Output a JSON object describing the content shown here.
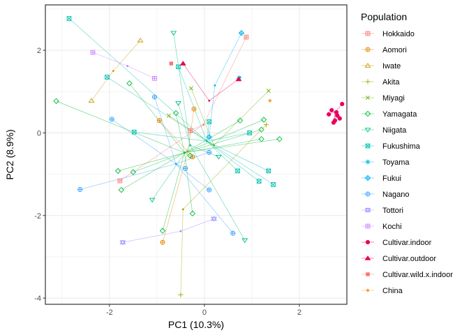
{
  "chart_data": {
    "type": "scatter",
    "xlabel": "PC1 (10.3%)",
    "ylabel": "PC2 (8.9%)",
    "xlim": [
      -3.35,
      3.0
    ],
    "ylim": [
      -4.15,
      3.1
    ],
    "x_ticks": [
      -2,
      0,
      2
    ],
    "y_ticks": [
      -4,
      -2,
      0,
      2
    ],
    "grid": true,
    "legend": {
      "title": "Population",
      "position": "right"
    },
    "series": [
      {
        "name": "Hokkaido",
        "color": "#F8766D",
        "shape": "square-plus",
        "centroid": [
          -0.02,
          0.2
        ],
        "points": [
          [
            0.88,
            2.32
          ],
          [
            -1.78,
            -1.16
          ],
          [
            -0.3,
            0.06
          ]
        ]
      },
      {
        "name": "Aomori",
        "color": "#E58700",
        "shape": "circle-plus",
        "centroid": [
          -0.35,
          -0.45
        ],
        "points": [
          [
            -0.95,
            0.3
          ],
          [
            -0.25,
            -0.58
          ],
          [
            -0.88,
            -2.65
          ],
          [
            -0.22,
            0.58
          ]
        ]
      },
      {
        "name": "Iwate",
        "color": "#C99800",
        "shape": "triangle",
        "centroid": [
          -1.92,
          1.5
        ],
        "points": [
          [
            -1.35,
            2.24
          ],
          [
            -2.38,
            0.78
          ]
        ]
      },
      {
        "name": "Akita",
        "color": "#A3A500",
        "shape": "plus",
        "centroid": [
          -0.45,
          -1.85
        ],
        "points": [
          [
            -0.5,
            -3.92
          ],
          [
            1.3,
            0.2
          ]
        ]
      },
      {
        "name": "Miyagi",
        "color": "#6BB100",
        "shape": "x",
        "centroid": [
          0.2,
          -0.3
        ],
        "points": [
          [
            1.35,
            1.02
          ],
          [
            -0.28,
            1.08
          ],
          [
            -0.75,
            0.42
          ]
        ]
      },
      {
        "name": "Yamagata",
        "color": "#00BA38",
        "shape": "diamond",
        "centroid": [
          -0.42,
          -0.48
        ],
        "points": [
          [
            -3.12,
            0.77
          ],
          [
            -1.58,
            1.2
          ],
          [
            -1.75,
            -1.38
          ],
          [
            -1.82,
            -0.92
          ],
          [
            -1.5,
            -0.95
          ],
          [
            -0.88,
            -2.37
          ],
          [
            -0.6,
            0.48
          ],
          [
            -0.3,
            -0.55
          ],
          [
            -0.25,
            -1.95
          ],
          [
            0.75,
            0.3
          ],
          [
            1.2,
            0.08
          ],
          [
            1.2,
            -0.15
          ],
          [
            1.25,
            0.32
          ],
          [
            1.58,
            -0.15
          ]
        ]
      },
      {
        "name": "Niigata",
        "color": "#00BF7D",
        "shape": "triangle-down",
        "centroid": [
          -0.3,
          -0.3
        ],
        "points": [
          [
            -0.65,
            2.42
          ],
          [
            -0.55,
            0.72
          ],
          [
            -1.1,
            -1.62
          ],
          [
            0.3,
            -0.58
          ],
          [
            0.85,
            -2.6
          ]
        ]
      },
      {
        "name": "Fukushima",
        "color": "#00C0AF",
        "shape": "square-x",
        "centroid": [
          0.05,
          -0.2
        ],
        "points": [
          [
            -2.85,
            2.77
          ],
          [
            -2.05,
            1.35
          ],
          [
            -0.55,
            1.6
          ],
          [
            -1.48,
            0.02
          ],
          [
            0.1,
            0.27
          ],
          [
            0.95,
            0.0
          ],
          [
            0.7,
            -0.92
          ],
          [
            1.15,
            -1.17
          ],
          [
            1.35,
            -0.92
          ],
          [
            1.45,
            -1.25
          ]
        ]
      },
      {
        "name": "Toyama",
        "color": "#00BCD8",
        "shape": "asterisk",
        "centroid": [
          0.75,
          1.35
        ],
        "points": [
          [
            0.73,
            1.33
          ]
        ]
      },
      {
        "name": "Fukui",
        "color": "#00B0F6",
        "shape": "diamond-plus",
        "centroid": [
          0.22,
          1.15
        ],
        "points": [
          [
            0.78,
            2.42
          ],
          [
            0.1,
            -0.1
          ]
        ]
      },
      {
        "name": "Nagano",
        "color": "#35A2FF",
        "shape": "circle-plus",
        "centroid": [
          -0.6,
          -0.75
        ],
        "points": [
          [
            -1.05,
            0.87
          ],
          [
            -1.95,
            0.33
          ],
          [
            -2.62,
            -1.37
          ],
          [
            -0.4,
            -0.86
          ],
          [
            0.1,
            -1.38
          ],
          [
            0.1,
            -0.47
          ],
          [
            0.6,
            -2.43
          ]
        ]
      },
      {
        "name": "Tottori",
        "color": "#9590FF",
        "shape": "star",
        "centroid": [
          -0.5,
          -2.38
        ],
        "points": [
          [
            -1.72,
            -2.65
          ],
          [
            0.2,
            -2.08
          ]
        ]
      },
      {
        "name": "Kochi",
        "color": "#C77CFF",
        "shape": "square-plus",
        "centroid": [
          -1.62,
          1.62
        ],
        "points": [
          [
            -2.35,
            1.95
          ],
          [
            -1.05,
            1.32
          ]
        ]
      },
      {
        "name": "Cultivar.indoor",
        "color": "#E7005F",
        "shape": "circle",
        "centroid": [
          2.75,
          0.5
        ],
        "points": [
          [
            2.62,
            0.45
          ],
          [
            2.68,
            0.55
          ],
          [
            2.78,
            0.5
          ],
          [
            2.85,
            0.35
          ],
          [
            2.9,
            0.7
          ],
          [
            2.75,
            0.3
          ],
          [
            2.8,
            0.42
          ],
          [
            2.72,
            0.25
          ]
        ]
      },
      {
        "name": "Cultivar.outdoor",
        "color": "#E7004C",
        "shape": "triangle-filled",
        "centroid": [
          0.1,
          0.78
        ],
        "points": [
          [
            -0.45,
            1.68
          ],
          [
            0.72,
            1.3
          ]
        ]
      },
      {
        "name": "Cultivar.wild.x.indoor",
        "color": "#F8766D",
        "shape": "square-filled",
        "centroid": [
          -0.7,
          1.68
        ],
        "points": [
          [
            -0.7,
            1.68
          ]
        ]
      },
      {
        "name": "China",
        "color": "#F59E33",
        "shape": "diamond-small",
        "centroid": [
          1.38,
          0.78
        ],
        "points": [
          [
            1.38,
            0.78
          ]
        ]
      }
    ]
  }
}
